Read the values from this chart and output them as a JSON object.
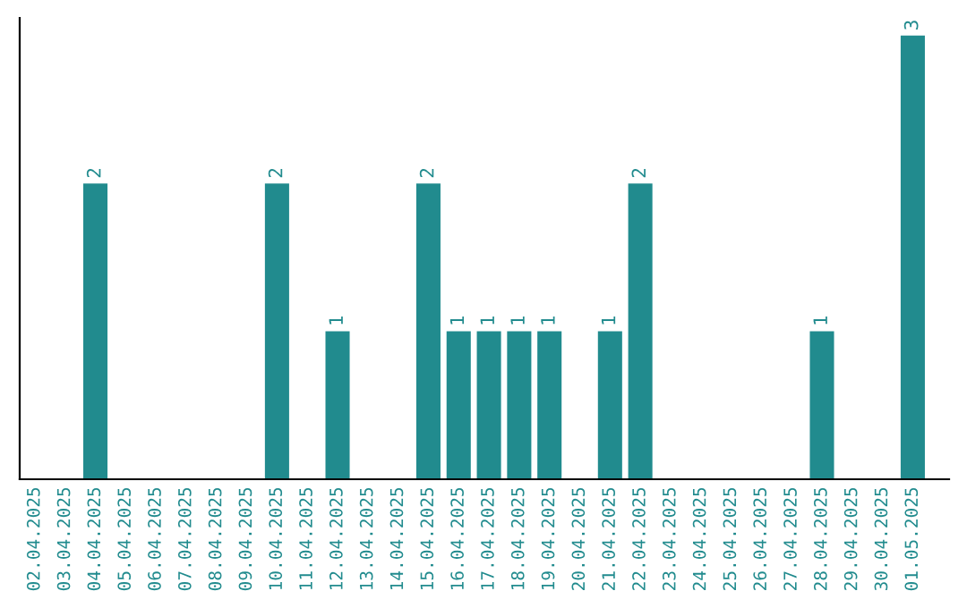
{
  "chart_data": {
    "type": "bar",
    "categories": [
      "02.04.2025",
      "03.04.2025",
      "04.04.2025",
      "05.04.2025",
      "06.04.2025",
      "07.04.2025",
      "08.04.2025",
      "09.04.2025",
      "10.04.2025",
      "11.04.2025",
      "12.04.2025",
      "13.04.2025",
      "14.04.2025",
      "15.04.2025",
      "16.04.2025",
      "17.04.2025",
      "18.04.2025",
      "19.04.2025",
      "20.04.2025",
      "21.04.2025",
      "22.04.2025",
      "23.04.2025",
      "24.04.2025",
      "25.04.2025",
      "26.04.2025",
      "27.04.2025",
      "28.04.2025",
      "29.04.2025",
      "30.04.2025",
      "01.05.2025"
    ],
    "values": [
      0,
      0,
      2,
      0,
      0,
      0,
      0,
      0,
      2,
      0,
      1,
      0,
      0,
      2,
      1,
      1,
      1,
      1,
      0,
      1,
      2,
      0,
      0,
      0,
      0,
      0,
      1,
      0,
      0,
      3
    ],
    "value_labels": [
      null,
      null,
      "2",
      null,
      null,
      null,
      null,
      null,
      "2",
      null,
      "1",
      null,
      null,
      "2",
      "1",
      "1",
      "1",
      "1",
      null,
      "1",
      "2",
      null,
      null,
      null,
      null,
      null,
      "1",
      null,
      null,
      "3"
    ],
    "color": "#218b8e",
    "tick_labels": "x",
    "grid": false,
    "legend": false
  }
}
